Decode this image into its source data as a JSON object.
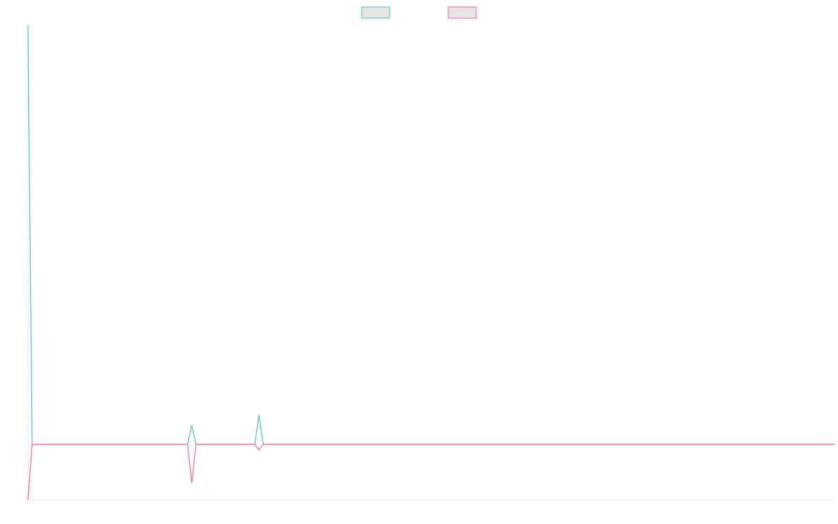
{
  "chart_data": {
    "type": "line",
    "x": [
      0,
      1,
      38,
      39,
      40,
      54,
      55,
      56,
      192
    ],
    "xlim": [
      0,
      192
    ],
    "ylim": [
      -1,
      7.5
    ],
    "series": [
      {
        "color": "#4bc0c0",
        "values": [
          7.5,
          0,
          0,
          0.34,
          0,
          0,
          0.525,
          0,
          0
        ]
      },
      {
        "color": "#ff6384",
        "values": [
          -1,
          0,
          0,
          -0.69,
          0,
          0,
          -0.1,
          0,
          0
        ]
      }
    ]
  }
}
